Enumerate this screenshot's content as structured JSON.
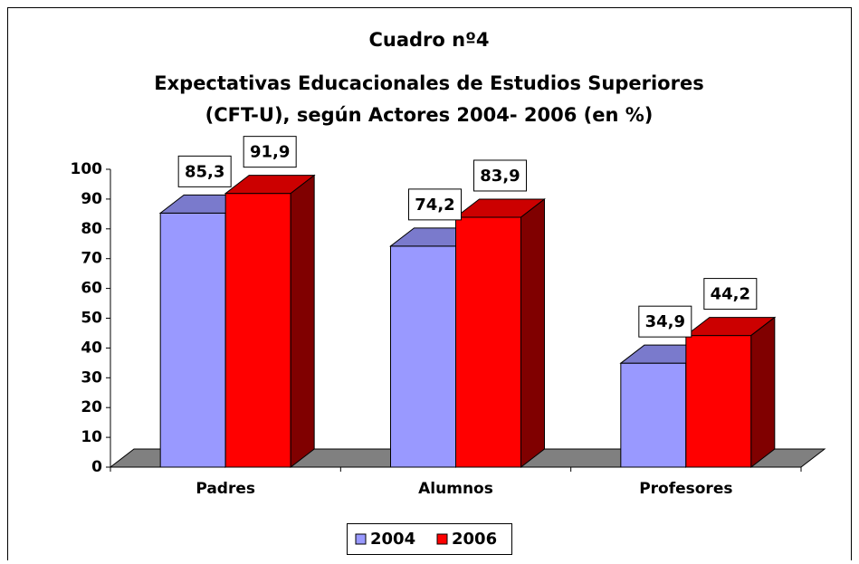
{
  "chart_data": {
    "type": "bar3d",
    "title": [
      "Cuadro nº4",
      "Expectativas Educacionales de Estudios Superiores",
      "(CFT-U), según Actores 2004- 2006 (en %)"
    ],
    "categories": [
      "Padres",
      "Alumnos",
      "Profesores"
    ],
    "series": [
      {
        "name": "2004",
        "color": "#9999ff",
        "values": [
          85.3,
          74.2,
          34.9
        ],
        "value_labels": [
          "85,3",
          "74,2",
          "34,9"
        ]
      },
      {
        "name": "2006",
        "color": "#ff0000",
        "values": [
          91.9,
          83.9,
          44.2
        ],
        "value_labels": [
          "91,9",
          "83,9",
          "44,2"
        ]
      }
    ],
    "ylim": [
      0,
      100
    ],
    "yticks": [
      0,
      10,
      20,
      30,
      40,
      50,
      60,
      70,
      80,
      90,
      100
    ],
    "legend": "bottom"
  }
}
